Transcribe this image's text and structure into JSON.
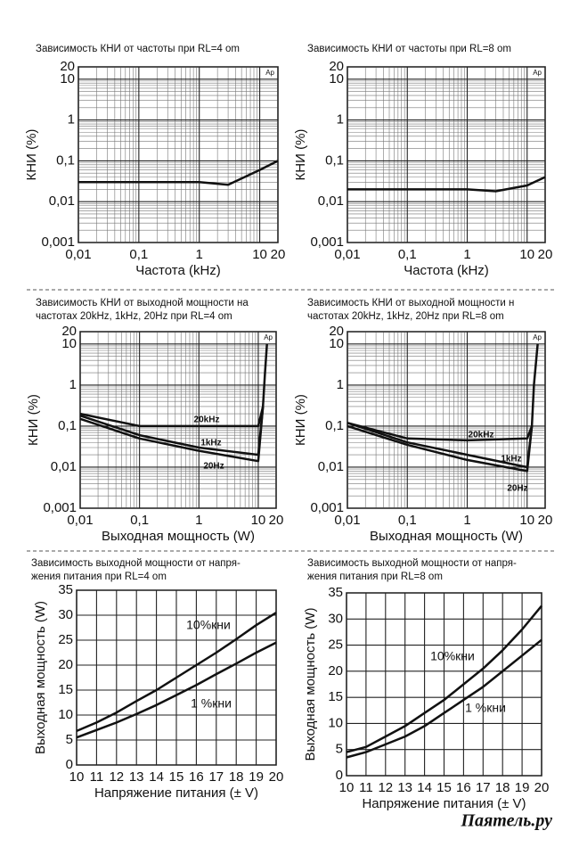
{
  "chart_data": [
    {
      "type": "line",
      "title": "Зависимость КНИ от частоты при RL=4 om",
      "xlabel": "Частота (kHz)",
      "ylabel": "КНИ (%)",
      "annotation": "Ap",
      "xscale": "log",
      "yscale": "log",
      "grid": true,
      "minor_grid": true,
      "xlim": [
        0.01,
        20
      ],
      "ylim": [
        0.001,
        20
      ],
      "xticks": [
        {
          "value": 0.01,
          "label": "0,01"
        },
        {
          "value": 0.1,
          "label": "0,1"
        },
        1,
        10,
        20
      ],
      "yticks": [
        {
          "value": 0.001,
          "label": "0,001"
        },
        {
          "value": 0.01,
          "label": "0,01"
        },
        {
          "value": 0.1,
          "label": "0,1"
        },
        1,
        10,
        20
      ],
      "series": [
        {
          "color": "#111111",
          "x": [
            0.01,
            0.1,
            1,
            3,
            10,
            20
          ],
          "values": [
            0.03,
            0.03,
            0.03,
            0.026,
            0.06,
            0.1
          ]
        }
      ]
    },
    {
      "type": "line",
      "title": "Зависимость КНИ от частоты при RL=8 om",
      "xlabel": "Частота (kHz)",
      "ylabel": "КНИ (%)",
      "annotation": "Ap",
      "xscale": "log",
      "yscale": "log",
      "grid": true,
      "minor_grid": true,
      "xlim": [
        0.01,
        20
      ],
      "ylim": [
        0.001,
        20
      ],
      "xticks": [
        {
          "value": 0.01,
          "label": "0,01"
        },
        {
          "value": 0.1,
          "label": "0,1"
        },
        1,
        10,
        20
      ],
      "yticks": [
        {
          "value": 0.001,
          "label": "0,001"
        },
        {
          "value": 0.01,
          "label": "0,01"
        },
        {
          "value": 0.1,
          "label": "0,1"
        },
        1,
        10,
        20
      ],
      "series": [
        {
          "color": "#111111",
          "x": [
            0.01,
            0.1,
            1,
            3,
            10,
            20
          ],
          "values": [
            0.02,
            0.02,
            0.02,
            0.018,
            0.025,
            0.04
          ]
        }
      ]
    },
    {
      "type": "line",
      "title": [
        "Зависимость КНИ от выходной мощности на",
        "частотах 20kHz, 1kHz, 20Hz при RL=4 om"
      ],
      "xlabel": "Выходная мощность (W)",
      "ylabel": "КНИ (%)",
      "annotation": "Ap",
      "xscale": "log",
      "yscale": "log",
      "grid": true,
      "minor_grid": true,
      "xlim": [
        0.01,
        20
      ],
      "ylim": [
        0.001,
        20
      ],
      "xticks": [
        {
          "value": 0.01,
          "label": "0,01"
        },
        {
          "value": 0.1,
          "label": "0,1"
        },
        1,
        10,
        20
      ],
      "yticks": [
        {
          "value": 0.001,
          "label": "0,001"
        },
        {
          "value": 0.01,
          "label": "0,01"
        },
        {
          "value": 0.1,
          "label": "0,1"
        },
        1,
        10,
        20
      ],
      "series": [
        {
          "name": "20kHz",
          "color": "#111111",
          "x": [
            0.01,
            0.1,
            1,
            10,
            12,
            13,
            14
          ],
          "values": [
            0.2,
            0.1,
            0.1,
            0.1,
            0.3,
            2,
            10
          ]
        },
        {
          "name": "1kHz",
          "color": "#111111",
          "x": [
            0.01,
            0.1,
            1,
            10,
            12
          ],
          "values": [
            0.18,
            0.06,
            0.03,
            0.02,
            0.3
          ]
        },
        {
          "name": "20Hz",
          "color": "#111111",
          "x": [
            0.01,
            0.1,
            1,
            10,
            12
          ],
          "values": [
            0.15,
            0.05,
            0.025,
            0.014,
            0.3
          ]
        }
      ]
    },
    {
      "type": "line",
      "title": [
        "Зависимость КНИ от выходной мощности н",
        "частотах 20kHz, 1kHz, 20Hz при RL=8 om"
      ],
      "xlabel": "Выходная мощность (W)",
      "ylabel": "КНИ (%)",
      "annotation": "Ap",
      "xscale": "log",
      "yscale": "log",
      "grid": true,
      "minor_grid": true,
      "xlim": [
        0.01,
        20
      ],
      "ylim": [
        0.001,
        20
      ],
      "xticks": [
        {
          "value": 0.01,
          "label": "0,01"
        },
        {
          "value": 0.1,
          "label": "0,1"
        },
        1,
        10,
        20
      ],
      "yticks": [
        {
          "value": 0.001,
          "label": "0,001"
        },
        {
          "value": 0.01,
          "label": "0,01"
        },
        {
          "value": 0.1,
          "label": "0,1"
        },
        1,
        10,
        20
      ],
      "series": [
        {
          "name": "20kHz",
          "color": "#111111",
          "x": [
            0.01,
            0.1,
            1,
            10,
            12,
            13,
            15
          ],
          "values": [
            0.12,
            0.05,
            0.045,
            0.05,
            0.1,
            1,
            10
          ]
        },
        {
          "name": "1kHz",
          "color": "#111111",
          "x": [
            0.01,
            0.1,
            1,
            10,
            12
          ],
          "values": [
            0.12,
            0.04,
            0.02,
            0.01,
            0.1
          ]
        },
        {
          "name": "20Hz",
          "color": "#111111",
          "x": [
            0.01,
            0.1,
            1,
            10,
            12
          ],
          "values": [
            0.1,
            0.035,
            0.015,
            0.008,
            0.1
          ]
        }
      ]
    },
    {
      "type": "line",
      "title": [
        "Зависимость выходной мощности от напря-",
        "жения питания при RL=4 om"
      ],
      "xlabel": "Напряжение питания (± V)",
      "ylabel": "Выходная мощность (W)",
      "grid": true,
      "xlim": [
        10,
        20
      ],
      "ylim": [
        0,
        35
      ],
      "xticks": [
        10,
        11,
        12,
        13,
        14,
        15,
        16,
        17,
        18,
        19,
        20
      ],
      "yticks": [
        0,
        5,
        10,
        15,
        20,
        25,
        30,
        35
      ],
      "series": [
        {
          "name": "10%кни",
          "color": "#111111",
          "x": [
            10,
            11,
            12,
            13,
            14,
            15,
            16,
            17,
            18,
            19,
            20
          ],
          "values": [
            6.8,
            8.5,
            10.5,
            12.8,
            15,
            17.5,
            20,
            22.5,
            25.2,
            28,
            30.5
          ]
        },
        {
          "name": "1 %кни",
          "color": "#111111",
          "x": [
            10,
            11,
            12,
            13,
            14,
            15,
            16,
            17,
            18,
            19,
            20
          ],
          "values": [
            5.5,
            7,
            8.5,
            10.2,
            12,
            14,
            16,
            18.2,
            20.3,
            22.5,
            24.5
          ]
        }
      ]
    },
    {
      "type": "line",
      "title": [
        "Зависимость выходной мощности от напря-",
        "жения питания при RL=8 om"
      ],
      "xlabel": "Напряжение питания (± V)",
      "ylabel": "Выходная мощность (W)",
      "grid": true,
      "xlim": [
        10,
        20
      ],
      "ylim": [
        0,
        35
      ],
      "xticks": [
        10,
        11,
        12,
        13,
        14,
        15,
        16,
        17,
        18,
        19,
        20
      ],
      "yticks": [
        0,
        5,
        10,
        15,
        20,
        25,
        30,
        35
      ],
      "series": [
        {
          "name": "10%кни",
          "color": "#111111",
          "x": [
            10,
            11,
            12,
            13,
            14,
            15,
            16,
            17,
            18,
            19,
            20
          ],
          "values": [
            4.5,
            5.5,
            7.5,
            9.5,
            12,
            14.5,
            17.5,
            20.5,
            24,
            28,
            32.5
          ]
        },
        {
          "name": "1 %кни",
          "color": "#111111",
          "x": [
            10,
            11,
            12,
            13,
            14,
            15,
            16,
            17,
            18,
            19,
            20
          ],
          "values": [
            3.5,
            4.5,
            6,
            7.5,
            9.5,
            12,
            14.5,
            17,
            20,
            23,
            26
          ]
        }
      ]
    }
  ],
  "watermark": "Паятель.ру"
}
